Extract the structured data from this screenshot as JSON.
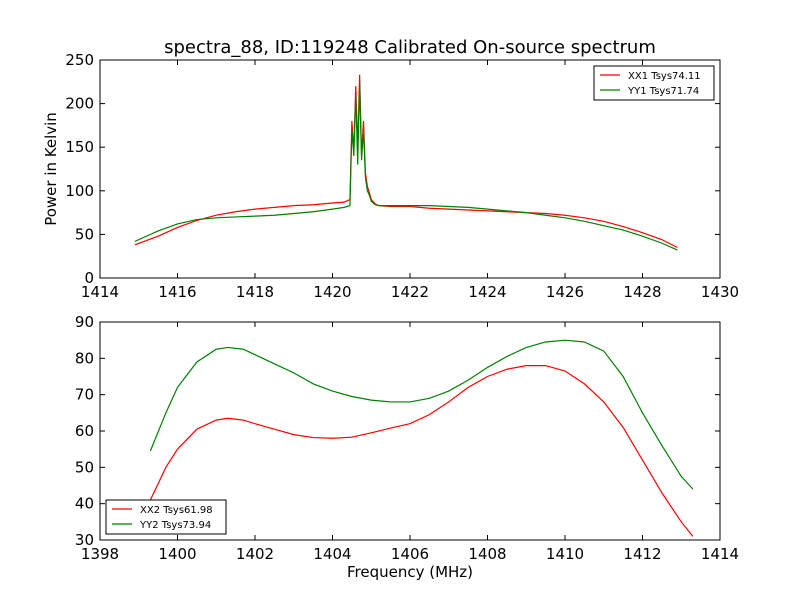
{
  "title": "spectra_88, ID:119248 Calibrated On-source spectrum",
  "chart_data": [
    {
      "type": "line",
      "title": "spectra_88, ID:119248 Calibrated On-source spectrum",
      "xlabel": "",
      "ylabel": "Power in Kelvin",
      "xlim": [
        1414,
        1430
      ],
      "ylim": [
        0,
        250
      ],
      "xticks": [
        1414,
        1416,
        1418,
        1420,
        1422,
        1424,
        1426,
        1428,
        1430
      ],
      "yticks": [
        0,
        50,
        100,
        150,
        200,
        250
      ],
      "legend_position": "top-right",
      "grid": false,
      "series": [
        {
          "name": "XX1 Tsys74.11",
          "color": "#ff0000",
          "x": [
            1414.9,
            1415.5,
            1416.0,
            1416.5,
            1417.0,
            1417.5,
            1418.0,
            1418.5,
            1419.0,
            1419.5,
            1420.0,
            1420.3,
            1420.45,
            1420.5,
            1420.55,
            1420.6,
            1420.65,
            1420.7,
            1420.75,
            1420.8,
            1420.85,
            1420.9,
            1420.95,
            1421.0,
            1421.1,
            1421.2,
            1421.5,
            1422.0,
            1422.5,
            1423.0,
            1423.5,
            1424.0,
            1424.5,
            1425.0,
            1425.5,
            1426.0,
            1426.5,
            1427.0,
            1427.5,
            1428.0,
            1428.5,
            1428.9
          ],
          "y": [
            38,
            48,
            58,
            66,
            72,
            76,
            79,
            81,
            83,
            84,
            86,
            87,
            90,
            180,
            145,
            220,
            150,
            233,
            140,
            180,
            120,
            105,
            98,
            90,
            85,
            83,
            82,
            82,
            80,
            79,
            78,
            77,
            76,
            75,
            74,
            72,
            69,
            65,
            59,
            52,
            44,
            35
          ]
        },
        {
          "name": "YY1 Tsys71.74",
          "color": "#008000",
          "x": [
            1414.9,
            1415.5,
            1416.0,
            1416.5,
            1417.0,
            1417.5,
            1418.0,
            1418.5,
            1419.0,
            1419.5,
            1420.0,
            1420.3,
            1420.45,
            1420.5,
            1420.55,
            1420.6,
            1420.65,
            1420.7,
            1420.75,
            1420.8,
            1420.85,
            1420.9,
            1420.95,
            1421.0,
            1421.1,
            1421.2,
            1421.5,
            1422.0,
            1422.5,
            1423.0,
            1423.5,
            1424.0,
            1424.5,
            1425.0,
            1425.5,
            1426.0,
            1426.5,
            1427.0,
            1427.5,
            1428.0,
            1428.5,
            1428.9
          ],
          "y": [
            42,
            54,
            62,
            67,
            69,
            70,
            71,
            72,
            74,
            76,
            79,
            81,
            83,
            170,
            140,
            210,
            130,
            225,
            135,
            170,
            115,
            100,
            95,
            88,
            84,
            83,
            83,
            83,
            83,
            82,
            81,
            79,
            77,
            75,
            72,
            69,
            65,
            60,
            55,
            48,
            40,
            32
          ]
        }
      ]
    },
    {
      "type": "line",
      "title": "",
      "xlabel": "Frequency (MHz)",
      "ylabel": "",
      "xlim": [
        1398,
        1414
      ],
      "ylim": [
        30,
        90
      ],
      "xticks": [
        1398,
        1400,
        1402,
        1404,
        1406,
        1408,
        1410,
        1412,
        1414
      ],
      "yticks": [
        30,
        40,
        50,
        60,
        70,
        80,
        90
      ],
      "legend_position": "bottom-left",
      "grid": false,
      "series": [
        {
          "name": "XX2 Tsys61.98",
          "color": "#ff0000",
          "x": [
            1399.3,
            1399.7,
            1400.0,
            1400.5,
            1401.0,
            1401.3,
            1401.7,
            1402.0,
            1402.5,
            1403.0,
            1403.5,
            1404.0,
            1404.5,
            1405.0,
            1405.5,
            1406.0,
            1406.5,
            1407.0,
            1407.5,
            1408.0,
            1408.5,
            1409.0,
            1409.5,
            1410.0,
            1410.5,
            1411.0,
            1411.5,
            1412.0,
            1412.5,
            1413.0,
            1413.3
          ],
          "y": [
            41,
            50,
            55,
            60.5,
            63,
            63.5,
            63,
            62,
            60.5,
            59,
            58.2,
            58,
            58.3,
            59.5,
            60.8,
            62,
            64.5,
            68,
            72,
            75,
            77,
            78,
            78,
            76.5,
            73,
            68,
            61,
            52,
            43,
            35,
            31
          ]
        },
        {
          "name": "YY2 Tsys73.94",
          "color": "#008000",
          "x": [
            1399.3,
            1399.7,
            1400.0,
            1400.5,
            1401.0,
            1401.3,
            1401.7,
            1402.0,
            1402.5,
            1403.0,
            1403.5,
            1404.0,
            1404.5,
            1405.0,
            1405.5,
            1406.0,
            1406.5,
            1407.0,
            1407.5,
            1408.0,
            1408.5,
            1409.0,
            1409.5,
            1410.0,
            1410.5,
            1411.0,
            1411.5,
            1412.0,
            1412.5,
            1413.0,
            1413.3
          ],
          "y": [
            54.5,
            65,
            72,
            79,
            82.5,
            83,
            82.5,
            81,
            78.5,
            76,
            73,
            71,
            69.5,
            68.5,
            68,
            68,
            69,
            71,
            74,
            77.5,
            80.5,
            83,
            84.5,
            85,
            84.5,
            82,
            75,
            65,
            56,
            47.5,
            44
          ]
        }
      ]
    }
  ]
}
